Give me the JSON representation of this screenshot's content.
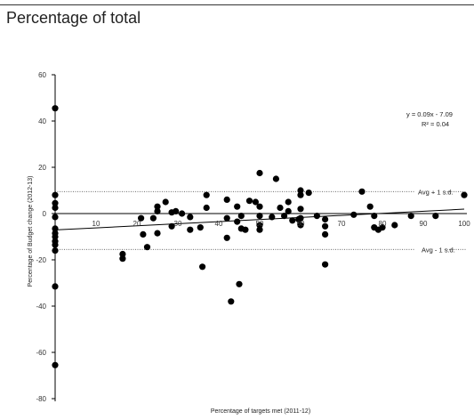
{
  "header": {
    "title": "Percentage of total"
  },
  "chart_data": {
    "type": "scatter",
    "xlabel": "Percentage of targets met (2011-12)",
    "ylabel": "Percentage of  Budget change (2012-13)",
    "xlim": [
      0,
      100
    ],
    "ylim": [
      -80,
      60
    ],
    "xticks": [
      10,
      20,
      30,
      40,
      50,
      60,
      70,
      80,
      90,
      100
    ],
    "yticks": [
      60,
      40,
      20,
      0,
      -20,
      -40,
      -60,
      -80
    ],
    "trendline": {
      "slope": 0.09,
      "intercept": -7.09,
      "equation": "y = 0.09x - 7.09",
      "r2": "R² = 0.04"
    },
    "reference_lines": [
      {
        "label": "Avg + 1 s.d.",
        "y": 9.5,
        "style": "dotted"
      },
      {
        "label": "Avg - 1 s.d.",
        "y": -15.5,
        "style": "dotted"
      }
    ],
    "grid": false,
    "legend": "none",
    "marker_color": "#000000",
    "points": [
      {
        "x": 0,
        "y": 45.5
      },
      {
        "x": 0,
        "y": 8
      },
      {
        "x": 0,
        "y": 4.5
      },
      {
        "x": 0,
        "y": 2.5
      },
      {
        "x": 0,
        "y": -1.5
      },
      {
        "x": 0,
        "y": -6.5
      },
      {
        "x": 0,
        "y": -8.5
      },
      {
        "x": 0,
        "y": -10
      },
      {
        "x": 0,
        "y": -12
      },
      {
        "x": 0,
        "y": -13.5
      },
      {
        "x": 0,
        "y": -16
      },
      {
        "x": 0,
        "y": -31.5
      },
      {
        "x": 0,
        "y": -65.5
      },
      {
        "x": 16.5,
        "y": -17.5
      },
      {
        "x": 16.5,
        "y": -19.5
      },
      {
        "x": 21,
        "y": -2
      },
      {
        "x": 21.5,
        "y": -9
      },
      {
        "x": 22.5,
        "y": -14.5
      },
      {
        "x": 24,
        "y": -2
      },
      {
        "x": 25,
        "y": 3
      },
      {
        "x": 25,
        "y": 1
      },
      {
        "x": 25,
        "y": -8.5
      },
      {
        "x": 27,
        "y": 5
      },
      {
        "x": 28.5,
        "y": 0.5
      },
      {
        "x": 28.5,
        "y": -5.5
      },
      {
        "x": 29.5,
        "y": 1
      },
      {
        "x": 31,
        "y": 0
      },
      {
        "x": 33,
        "y": -1.5
      },
      {
        "x": 33,
        "y": -7
      },
      {
        "x": 35.5,
        "y": -6
      },
      {
        "x": 36,
        "y": -23
      },
      {
        "x": 37,
        "y": 8
      },
      {
        "x": 37,
        "y": 2.5
      },
      {
        "x": 42,
        "y": 6
      },
      {
        "x": 42,
        "y": -2
      },
      {
        "x": 42,
        "y": -10.5
      },
      {
        "x": 43,
        "y": -38
      },
      {
        "x": 44.5,
        "y": 3
      },
      {
        "x": 44.5,
        "y": -3.5
      },
      {
        "x": 45,
        "y": -30.5
      },
      {
        "x": 45.5,
        "y": -6.5
      },
      {
        "x": 45.5,
        "y": -1
      },
      {
        "x": 46.5,
        "y": -7
      },
      {
        "x": 47.5,
        "y": 5.5
      },
      {
        "x": 49,
        "y": 5
      },
      {
        "x": 50,
        "y": 17.5
      },
      {
        "x": 50,
        "y": 3
      },
      {
        "x": 50,
        "y": -1
      },
      {
        "x": 50,
        "y": -5
      },
      {
        "x": 50,
        "y": -7
      },
      {
        "x": 53,
        "y": -1.5
      },
      {
        "x": 54,
        "y": 15
      },
      {
        "x": 55,
        "y": 2.5
      },
      {
        "x": 56,
        "y": -1
      },
      {
        "x": 57,
        "y": 5
      },
      {
        "x": 57,
        "y": 1
      },
      {
        "x": 58,
        "y": -3
      },
      {
        "x": 59.5,
        "y": -2.5
      },
      {
        "x": 60,
        "y": 10
      },
      {
        "x": 60,
        "y": 8
      },
      {
        "x": 60,
        "y": 2
      },
      {
        "x": 60,
        "y": -2
      },
      {
        "x": 60,
        "y": -5
      },
      {
        "x": 62,
        "y": 9
      },
      {
        "x": 64,
        "y": -1
      },
      {
        "x": 66,
        "y": -2.5
      },
      {
        "x": 66,
        "y": -5.5
      },
      {
        "x": 66,
        "y": -9
      },
      {
        "x": 66,
        "y": -22
      },
      {
        "x": 73,
        "y": -0.5
      },
      {
        "x": 75,
        "y": 9.5
      },
      {
        "x": 77,
        "y": 3
      },
      {
        "x": 78,
        "y": -1
      },
      {
        "x": 78,
        "y": -6
      },
      {
        "x": 79,
        "y": -7
      },
      {
        "x": 80,
        "y": -6
      },
      {
        "x": 83,
        "y": -5
      },
      {
        "x": 87,
        "y": -1
      },
      {
        "x": 93,
        "y": -1
      },
      {
        "x": 100,
        "y": 8
      }
    ]
  }
}
